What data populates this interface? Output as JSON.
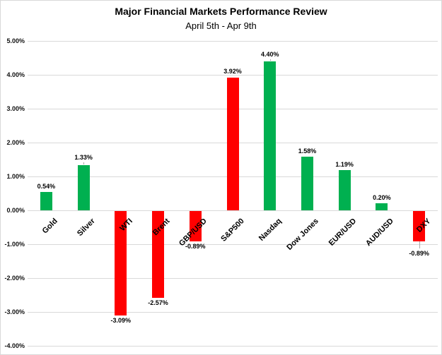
{
  "chart_data": {
    "type": "bar",
    "title": "Major Financial Markets Performance Review",
    "subtitle": "April 5th - Apr 9th",
    "categories": [
      "Gold",
      "Silver",
      "WTI",
      "Brent",
      "GBP/USD",
      "S&P500",
      "Nasdaq",
      "Dow Jones",
      "EUR/USD",
      "AUD/USD",
      "DXY"
    ],
    "values": [
      0.54,
      1.33,
      -3.09,
      -2.57,
      -0.89,
      3.92,
      4.4,
      1.58,
      1.19,
      0.2,
      -0.89
    ],
    "bar_labels": [
      "0.54%",
      "1.33%",
      "-3.09%",
      "-2.57%",
      "-0.89%",
      "3.92%",
      "4.40%",
      "1.58%",
      "1.19%",
      "0.20%",
      "-0.89%"
    ],
    "bar_colors": [
      "#00B050",
      "#00B050",
      "#FF0000",
      "#FF0000",
      "#FF0000",
      "#FF0000",
      "#00B050",
      "#00B050",
      "#00B050",
      "#00B050",
      "#FF0000"
    ],
    "label_offsets": [
      3,
      6,
      3,
      3,
      3,
      4,
      5,
      3,
      3,
      3,
      13
    ],
    "label_leaders": [
      false,
      true,
      false,
      false,
      false,
      false,
      true,
      false,
      false,
      false,
      true
    ],
    "positive_color": "#00B050",
    "negative_color": "#FF0000",
    "xlabel": "",
    "ylabel": "",
    "ylim": [
      -4,
      5
    ],
    "ytick_step": 1,
    "yticks": [
      "5.00%",
      "4.00%",
      "3.00%",
      "2.00%",
      "1.00%",
      "0.00%",
      "-1.00%",
      "-2.00%",
      "-3.00%",
      "-4.00%"
    ],
    "grid": true,
    "gridline_color": "#D9D9D9",
    "leader_color": "#A6A6A6",
    "legend": "none"
  }
}
